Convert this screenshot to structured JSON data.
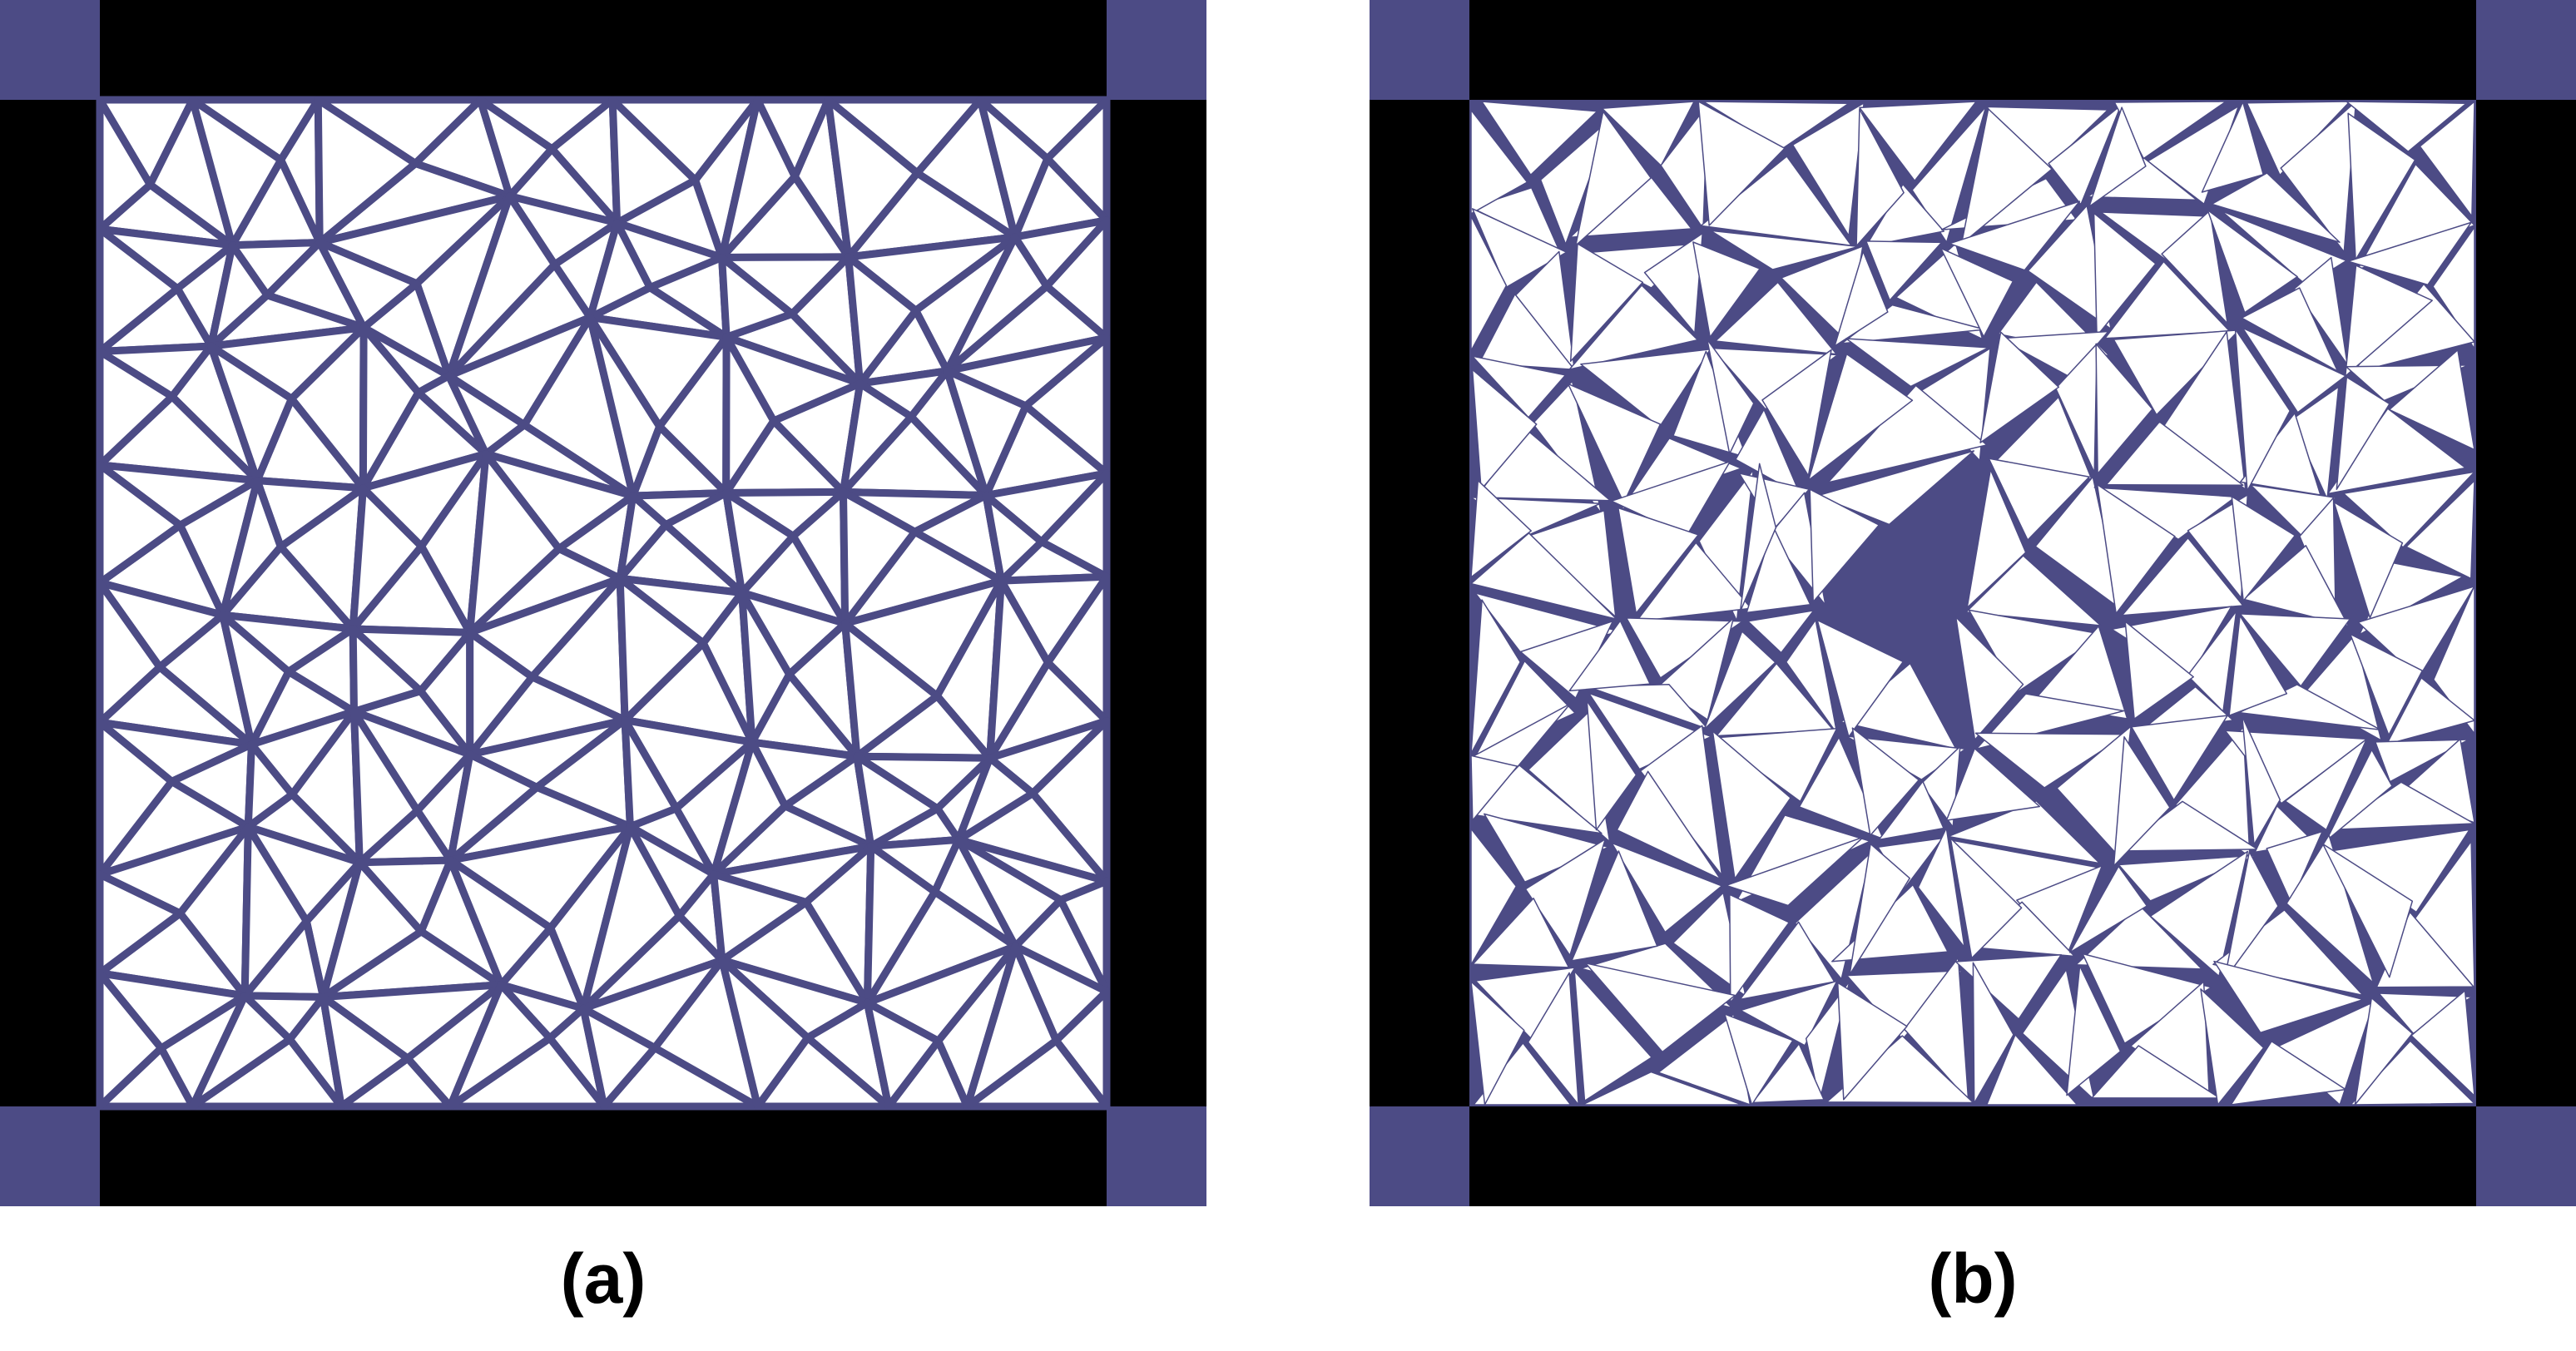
{
  "panels": [
    {
      "id": "a",
      "caption": "(a)",
      "state": "intact-mesh"
    },
    {
      "id": "b",
      "caption": "(b)",
      "state": "fragmented-mesh"
    }
  ],
  "colors": {
    "frame": "#000000",
    "corner_block": "#4c4b85",
    "edge": "#4c4b85",
    "cell_fill": "#ffffff",
    "background": "#ffffff"
  }
}
